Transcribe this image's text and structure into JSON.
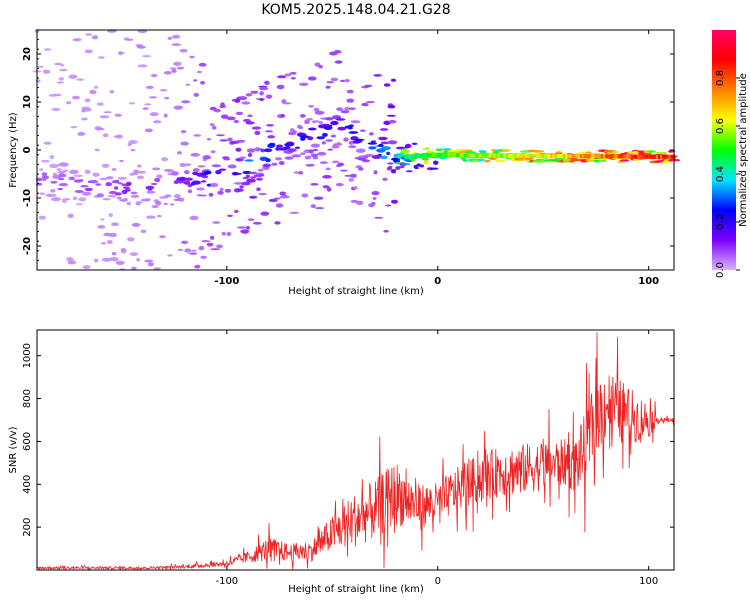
{
  "figure": {
    "title": "KOM5.2025.148.04.21.G28"
  },
  "chart_data": [
    {
      "type": "heatmap",
      "title": "KOM5.2025.148.04.21.G28",
      "xlabel": "Height of straight line (km)",
      "ylabel": "Frequency (Hz)",
      "xlim": [
        -190,
        112
      ],
      "ylim": [
        -25,
        25
      ],
      "x_ticks": [
        -100,
        0,
        100
      ],
      "y_ticks": [
        -20,
        -10,
        0,
        10,
        20
      ],
      "colorbar": {
        "label": "Normalized spectral amplitude",
        "range": [
          0,
          1
        ],
        "ticks": [
          0.0,
          0.2,
          0.4,
          0.6,
          0.8
        ],
        "tick_labels": [
          "0.0",
          "0.2",
          "0.4",
          "0.6",
          "0.8"
        ],
        "stops": [
          "#d9b3ff",
          "#7a00ff",
          "#0000ff",
          "#00e5ff",
          "#00ff00",
          "#ffff00",
          "#ff8000",
          "#ff0000",
          "#ff0066"
        ]
      },
      "ridge": {
        "description_points_x": [
          -190,
          -160,
          -130,
          -110,
          -95,
          -85,
          -75,
          -65,
          -55,
          -45,
          -35,
          -25,
          -15,
          0,
          20,
          40,
          60,
          80,
          100,
          112
        ],
        "description_points_y": [
          -6,
          -8,
          -7,
          -6,
          -5,
          -2,
          1,
          2,
          4,
          5,
          2,
          -1,
          -1.5,
          -1,
          -1.2,
          -1.2,
          -1.3,
          -1.3,
          -1.4,
          -1.4
        ],
        "strength_y": [
          0.05,
          0.08,
          0.1,
          0.18,
          0.25,
          0.25,
          0.25,
          0.2,
          0.2,
          0.2,
          0.2,
          0.3,
          0.45,
          0.55,
          0.6,
          0.65,
          0.7,
          0.8,
          0.85,
          0.9
        ]
      }
    },
    {
      "type": "line",
      "xlabel": "Height of straight line (km)",
      "ylabel": "SNR (v/v)",
      "xlim": [
        -190,
        112
      ],
      "ylim": [
        0,
        1120
      ],
      "x_ticks": [
        -100,
        0,
        100
      ],
      "y_ticks": [
        200,
        400,
        600,
        800,
        1000
      ],
      "series": [
        {
          "color": "#ee2222",
          "envelope_x": [
            -190,
            -140,
            -120,
            -100,
            -90,
            -80,
            -70,
            -60,
            -50,
            -40,
            -30,
            -20,
            -10,
            0,
            10,
            20,
            30,
            40,
            50,
            60,
            65,
            70,
            75,
            80,
            90,
            100,
            105,
            112
          ],
          "envelope_mean": [
            10,
            10,
            15,
            30,
            60,
            100,
            80,
            90,
            170,
            230,
            280,
            360,
            300,
            310,
            380,
            430,
            460,
            470,
            490,
            500,
            490,
            560,
            720,
            780,
            720,
            700,
            700,
            700
          ],
          "envelope_spread": [
            8,
            8,
            10,
            20,
            40,
            80,
            60,
            70,
            120,
            180,
            200,
            220,
            150,
            140,
            150,
            160,
            170,
            170,
            170,
            160,
            180,
            250,
            250,
            250,
            200,
            120,
            15,
            15
          ]
        }
      ]
    }
  ]
}
